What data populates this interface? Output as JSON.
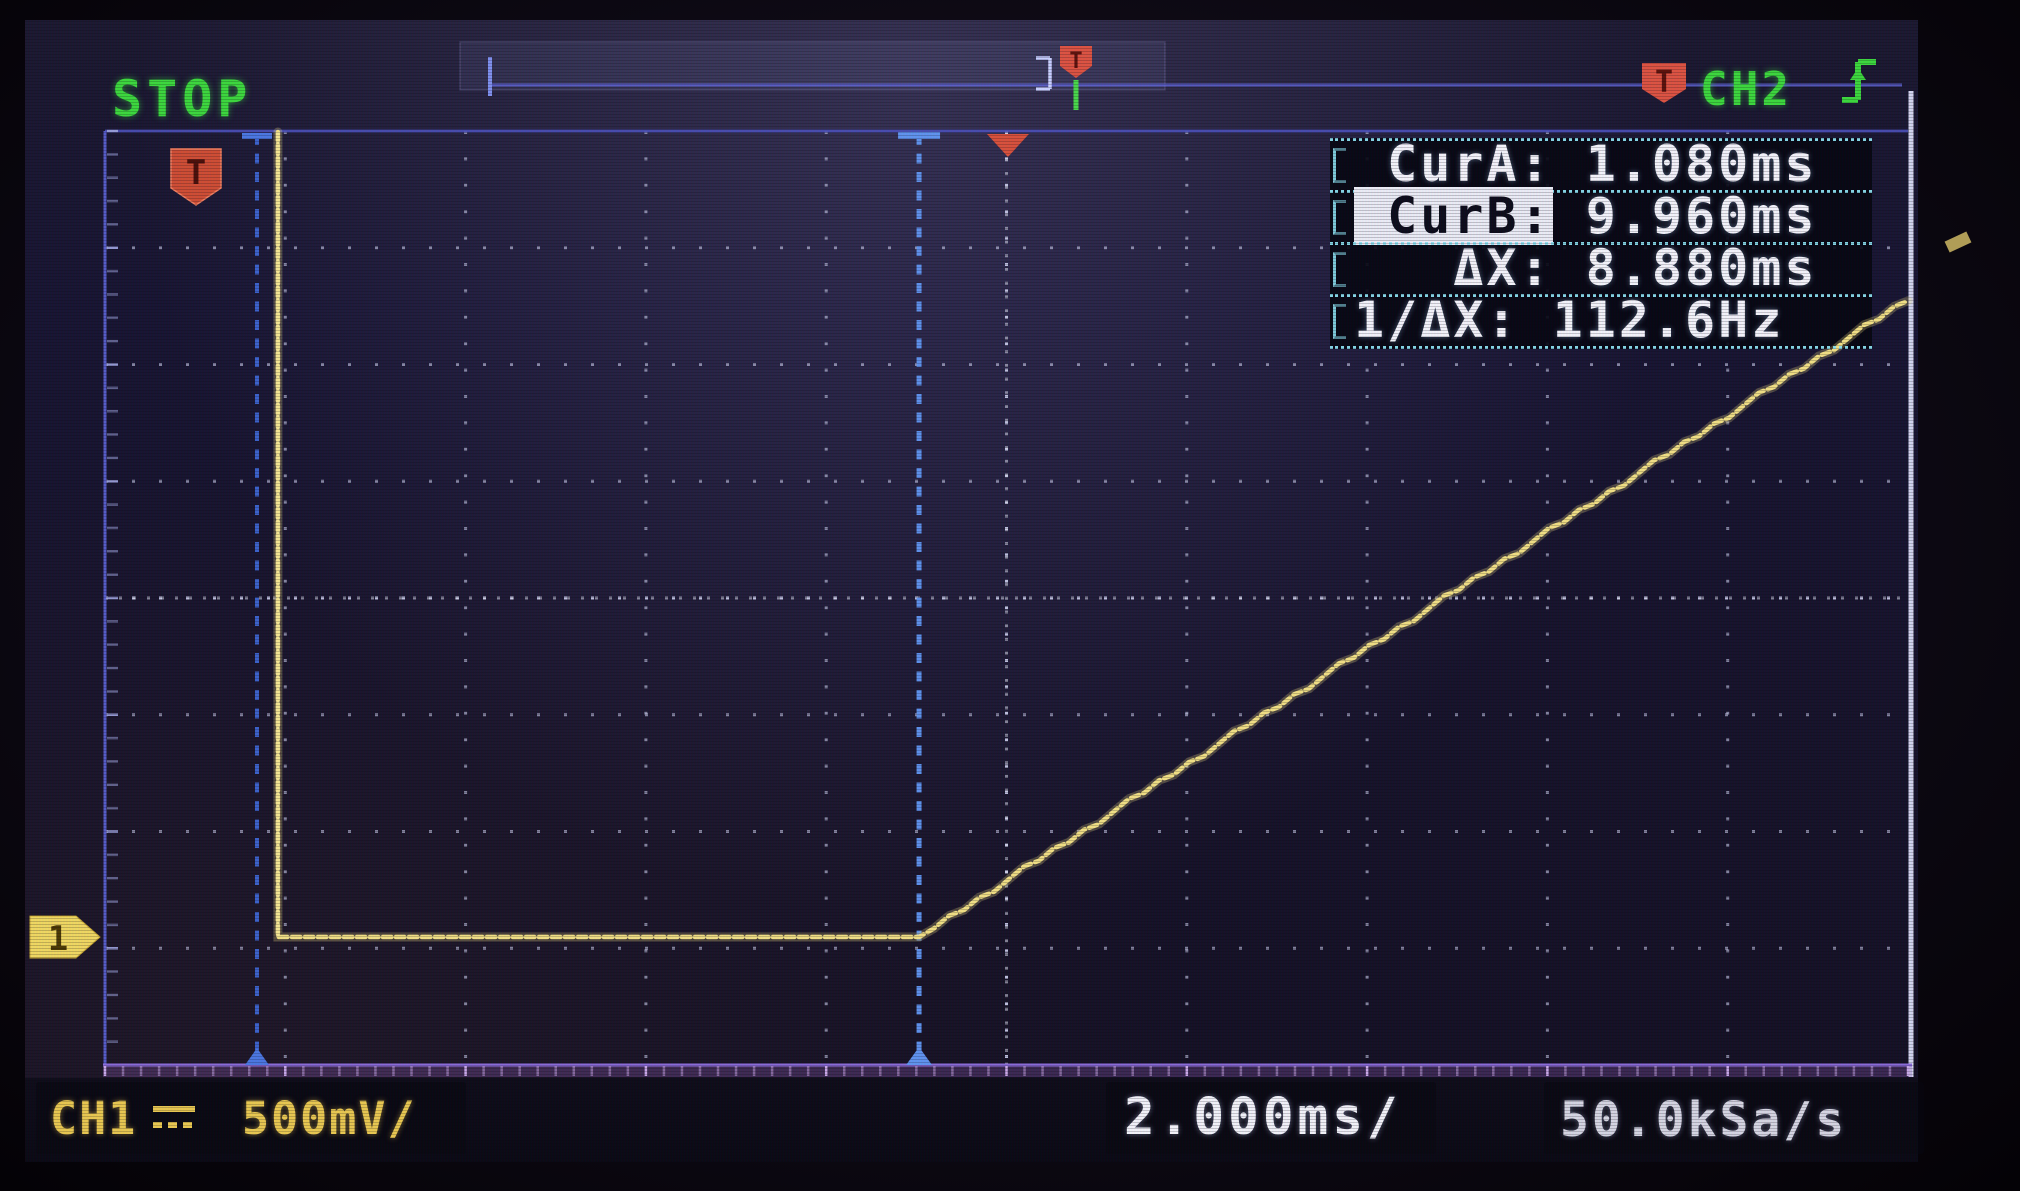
{
  "top_bar": {
    "status": "STOP",
    "trigger_source": "CH2",
    "trigger_flag_letter": "T",
    "trigger_slope": "rising-edge"
  },
  "measurements": {
    "rows": [
      {
        "label": " CurA:",
        "value": " 1.080ms",
        "highlighted": false
      },
      {
        "label": " CurB:",
        "value": " 9.960ms",
        "highlighted": true
      },
      {
        "label": "   ΔX:",
        "value": " 8.880ms",
        "highlighted": false
      },
      {
        "label": "1/ΔX:",
        "value": " 112.6Hz",
        "highlighted": false
      }
    ]
  },
  "bottom_bar": {
    "channel": "CH1",
    "coupling": "DC",
    "volts_per_div": "500mV/",
    "time_per_div": "2.000ms/",
    "sample_rate": "50.0kSa/s"
  },
  "channel_marker": {
    "number": "1"
  },
  "colors": {
    "green_text": "#3bd83b",
    "yellow_trace": "#f1df83",
    "cursor_blue": "#4a77e2",
    "trigger_red": "#d9503a",
    "panel_cyan": "#8ae0f0",
    "grid_dot": "#c6c8e6"
  },
  "chart_data": {
    "type": "line",
    "title": "Oscilloscope capture - CH1 ramp waveform",
    "x_units": "ms",
    "y_units": "mV",
    "time_per_div_ms": 2.0,
    "volts_per_div_mV": 500,
    "sample_rate_label": "50.0kSa/s",
    "acquisition_state": "STOP",
    "divisions": {
      "horizontal": 10,
      "vertical": 8
    },
    "cursors": {
      "CurA_ms": 1.08,
      "CurB_ms": 9.96,
      "dX_ms": 8.88,
      "inv_dX_Hz": 112.6
    },
    "waveform_description": "Trace falls from top of screen, sits flat near bottom graticule line between cursor A and cursor B, then ramps linearly up to the top right edge",
    "cursor_a_norm": 0.0843,
    "cursor_b_norm": 0.4515,
    "trigger_pos_norm": 0.5008,
    "trace_norm": [
      [
        0.0959,
        0.0
      ],
      [
        0.0959,
        0.863
      ],
      [
        0.4515,
        0.863
      ],
      [
        1.0,
        0.1797
      ]
    ]
  }
}
